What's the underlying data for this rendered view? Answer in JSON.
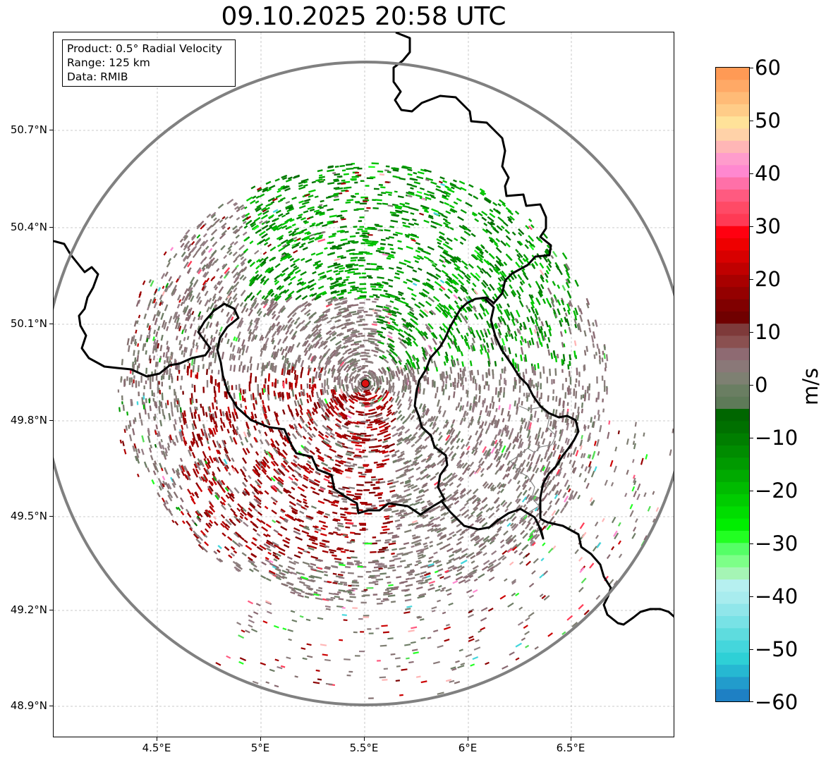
{
  "title": "09.10.2025 20:58 UTC",
  "info_box": {
    "product": "Product: 0.5° Radial Velocity",
    "range": "Range: 125 km",
    "data": "Data: RMIB"
  },
  "axes": {
    "lat_labels": [
      "50.7°N",
      "50.4°N",
      "50.1°N",
      "49.8°N",
      "49.5°N",
      "49.2°N",
      "48.9°N"
    ],
    "lon_labels": [
      "4.5°E",
      "5°E",
      "5.5°E",
      "6°E",
      "6.5°E"
    ],
    "lat_values": [
      50.7,
      50.4,
      50.1,
      49.8,
      49.5,
      49.2,
      48.9
    ],
    "lon_values": [
      4.5,
      5.0,
      5.5,
      6.0,
      6.5
    ],
    "extent": {
      "lon_min": 4.0,
      "lon_max": 7.0,
      "lat_min": 48.8,
      "lat_max": 51.0
    }
  },
  "radar": {
    "lat": 49.915,
    "lon": 5.505,
    "range_km": 125
  },
  "colorbar": {
    "unit": "m/s",
    "min": -60,
    "max": 60,
    "tick_values": [
      60,
      50,
      40,
      30,
      20,
      10,
      0,
      -10,
      -20,
      -30,
      -40,
      -50,
      -60
    ],
    "tick_labels": [
      "60",
      "50",
      "40",
      "30",
      "20",
      "10",
      "0",
      "−10",
      "−20",
      "−30",
      "−40",
      "−50",
      "−60"
    ]
  },
  "colors": {
    "approaching_strong": "#008800",
    "approaching_light": "#00d000",
    "neutral": "#8a7a7a",
    "receding": "#8b0000",
    "receding_light": "#cc0000",
    "border": "#000000",
    "range_ring": "#808080",
    "radar_site": "#dd1111"
  }
}
